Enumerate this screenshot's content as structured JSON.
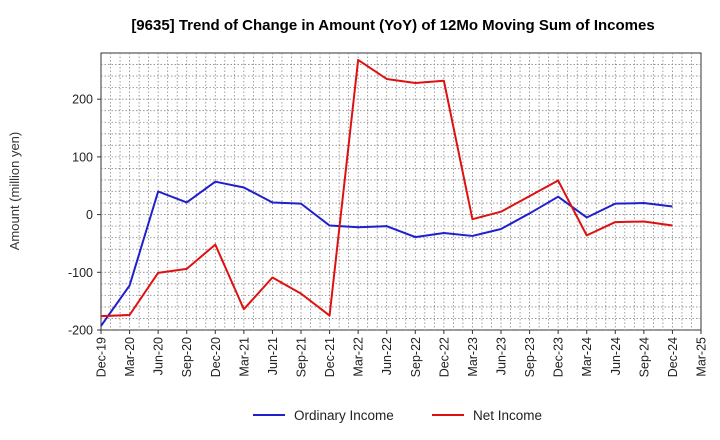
{
  "chart_data": {
    "type": "line",
    "title": "[9635]  Trend of Change in Amount (YoY) of 12Mo Moving Sum of Incomes",
    "ylabel": "Amount (million yen)",
    "xlabel": "",
    "ylim": [
      -200,
      280
    ],
    "yticks": [
      -200,
      -100,
      0,
      100,
      200
    ],
    "grid": true,
    "legend_position": "bottom",
    "categories": [
      "Dec-19",
      "Mar-20",
      "Jun-20",
      "Sep-20",
      "Dec-20",
      "Mar-21",
      "Jun-21",
      "Sep-21",
      "Dec-21",
      "Mar-22",
      "Jun-22",
      "Sep-22",
      "Dec-22",
      "Mar-23",
      "Jun-23",
      "Sep-23",
      "Dec-23",
      "Mar-24",
      "Jun-24",
      "Sep-24",
      "Dec-24",
      "Mar-25"
    ],
    "series": [
      {
        "name": "Ordinary Income",
        "color": "#1f1fcc",
        "values": [
          -193,
          -123,
          40,
          21,
          57,
          47,
          21,
          19,
          -19,
          -22,
          -20,
          -39,
          -32,
          -37,
          -25,
          2,
          31,
          -5,
          19,
          20,
          14,
          null
        ]
      },
      {
        "name": "Net Income",
        "color": "#dd1111",
        "values": [
          -176,
          -174,
          -101,
          -94,
          -52,
          -164,
          -109,
          -137,
          -175,
          268,
          235,
          228,
          232,
          -8,
          5,
          32,
          59,
          -36,
          -13,
          -12,
          -19,
          null
        ]
      }
    ]
  }
}
